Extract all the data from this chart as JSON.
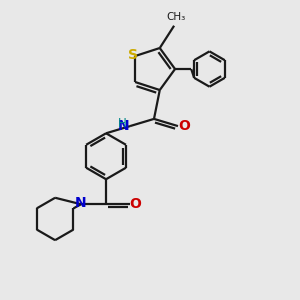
{
  "bg_color": "#e8e8e8",
  "line_color": "#1a1a1a",
  "sulfur_color": "#ccaa00",
  "nitrogen_color": "#0000cc",
  "oxygen_color": "#cc0000",
  "h_color": "#008888",
  "line_width": 1.6,
  "figsize": [
    3.0,
    3.0
  ],
  "dpi": 100,
  "xlim": [
    0,
    10
  ],
  "ylim": [
    0,
    10
  ]
}
